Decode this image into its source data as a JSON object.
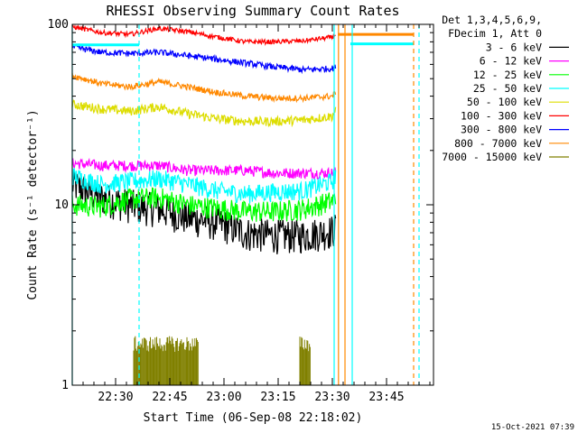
{
  "chart_data": {
    "type": "line",
    "title": "RHESSI Observing Summary Count Rates",
    "xlabel": "Start Time (06-Sep-08 22:18:02)",
    "ylabel": "Count Rate (s⁻¹ detector⁻¹)",
    "yscale": "log",
    "ylim": [
      1,
      100
    ],
    "xlim_minutes": [
      0,
      100
    ],
    "x_ticks": [
      {
        "label": "22:30",
        "minute": 12
      },
      {
        "label": "22:45",
        "minute": 27
      },
      {
        "label": "23:00",
        "minute": 42
      },
      {
        "label": "23:15",
        "minute": 57
      },
      {
        "label": "23:30",
        "minute": 72
      },
      {
        "label": "23:45",
        "minute": 87
      }
    ],
    "y_ticks": [
      {
        "label": "1",
        "value": 1
      },
      {
        "label": "10",
        "value": 10
      },
      {
        "label": "100",
        "value": 100
      }
    ],
    "legend_header": [
      "Det 1,3,4,5,6,9,",
      "FDecim 1, Att 0"
    ],
    "series": [
      {
        "name": "3 - 6 keV",
        "color": "#000000",
        "x": [
          0,
          8,
          16,
          24,
          32,
          40,
          48,
          56,
          64,
          72,
          73
        ],
        "y": [
          13,
          11,
          10,
          9.5,
          8.5,
          8.0,
          7.0,
          6.8,
          6.8,
          7.2,
          7.5
        ]
      },
      {
        "name": "6 - 12 keV",
        "color": "#ff00ff",
        "x": [
          0,
          8,
          16,
          24,
          32,
          40,
          48,
          56,
          64,
          72,
          73
        ],
        "y": [
          17,
          16.5,
          16.5,
          16.5,
          15.5,
          15.5,
          15.5,
          15,
          15,
          15,
          15.5
        ]
      },
      {
        "name": "12 - 25 keV",
        "color": "#00ff00",
        "x": [
          0,
          8,
          16,
          24,
          32,
          40,
          48,
          56,
          64,
          72,
          73
        ],
        "y": [
          10,
          9.8,
          10.8,
          11,
          10,
          9.6,
          9.2,
          9.2,
          9.5,
          10.5,
          11
        ]
      },
      {
        "name": "25 - 50 keV",
        "color": "#00ffff",
        "x": [
          0,
          8,
          16,
          24,
          32,
          40,
          48,
          56,
          64,
          72,
          73
        ],
        "y": [
          14.5,
          13,
          13.5,
          14,
          13,
          12,
          11.5,
          11.8,
          12,
          13.5,
          15
        ]
      },
      {
        "name": "50 - 100 keV",
        "color": "#dddd00",
        "x": [
          0,
          8,
          16,
          24,
          32,
          40,
          48,
          56,
          64,
          72,
          73
        ],
        "y": [
          36,
          34,
          33,
          35,
          32,
          30,
          29,
          29,
          29.5,
          31,
          34
        ]
      },
      {
        "name": "100 - 300 keV",
        "color": "#ff0000",
        "x": [
          0,
          8,
          16,
          24,
          32,
          40,
          48,
          56,
          64,
          72,
          73
        ],
        "y": [
          97,
          90,
          88,
          95,
          91,
          85,
          80,
          80,
          81,
          85,
          89
        ]
      },
      {
        "name": "300 - 800 keV",
        "color": "#0000ff",
        "x": [
          0,
          8,
          16,
          24,
          32,
          40,
          48,
          56,
          64,
          72,
          73
        ],
        "y": [
          75,
          70,
          69,
          70,
          67,
          64,
          61,
          58,
          56,
          57,
          58
        ]
      },
      {
        "name": "800 - 7000 keV",
        "color": "#ff8800",
        "x": [
          0,
          8,
          16,
          24,
          32,
          40,
          48,
          56,
          64,
          72,
          73
        ],
        "y": [
          52,
          47,
          45,
          48,
          45,
          42,
          40,
          39,
          39,
          40,
          42
        ]
      },
      {
        "name": "7000 - 15000 keV",
        "color": "#808000",
        "x": [
          17,
          19,
          21,
          23,
          25,
          27,
          29,
          31,
          33,
          35,
          63,
          64.5,
          66
        ],
        "y": [
          1.7,
          1.7,
          1.7,
          1.7,
          1.7,
          1.7,
          1.7,
          1.7,
          1.7,
          1.7,
          1.7,
          1.7,
          1.7
        ]
      }
    ],
    "attenuator_segments": [
      {
        "color": "#ff8800",
        "x": [
          73.5,
          94.5
        ],
        "y": 88
      },
      {
        "color": "#00ffff",
        "x": [
          77,
          94.5
        ],
        "y": 78
      },
      {
        "color": "#00ffff",
        "x": [
          0,
          18.5
        ],
        "y": 77
      }
    ],
    "vertical_markers": [
      {
        "color": "#00ffff",
        "style": "solid",
        "minute": 0
      },
      {
        "color": "#00ffff",
        "style": "dashed",
        "minute": 18.5
      },
      {
        "color": "#00ffff",
        "style": "solid",
        "minute": 72.5
      },
      {
        "color": "#ff8800",
        "style": "solid",
        "minute": 73.7
      },
      {
        "color": "#ff8800",
        "style": "solid",
        "minute": 75.5
      },
      {
        "color": "#00ffff",
        "style": "solid",
        "minute": 77.5
      },
      {
        "color": "#ff8800",
        "style": "dashed",
        "minute": 94.5
      },
      {
        "color": "#00ffff",
        "style": "dashed",
        "minute": 96
      }
    ],
    "footer_date": "15-Oct-2021 07:39"
  }
}
